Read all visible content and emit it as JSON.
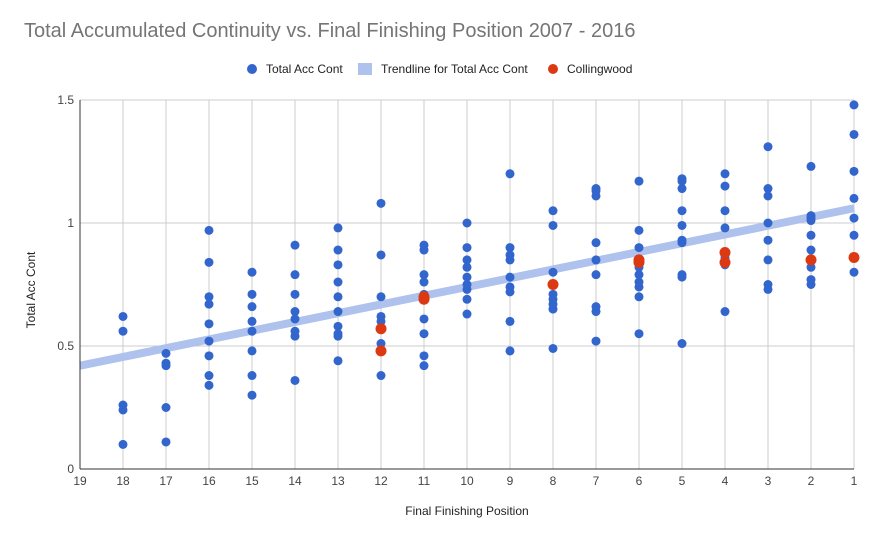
{
  "chart_data": {
    "type": "scatter",
    "title": "Total Accumulated Continuity vs. Final Finishing Position 2007 - 2016",
    "xlabel": "Final Finishing Position",
    "ylabel": "Total Acc Cont",
    "xlim": [
      19,
      1
    ],
    "x_reversed": true,
    "ylim": [
      0,
      1.5
    ],
    "x_ticks": [
      "19",
      "18",
      "17",
      "16",
      "15",
      "14",
      "13",
      "12",
      "11",
      "10",
      "9",
      "8",
      "7",
      "6",
      "5",
      "4",
      "3",
      "2",
      "1"
    ],
    "y_ticks": [
      "0",
      "0.5",
      "1",
      "1.5"
    ],
    "grid": true,
    "legend_position": "top-center",
    "colors": {
      "series": "#3366cc",
      "trendline": "#aec2ed",
      "collingwood": "#dc3912",
      "grid": "#cccccc",
      "axis": "#333333"
    },
    "series": [
      {
        "name": "Total Acc Cont",
        "points": [
          [
            18,
            0.1
          ],
          [
            18,
            0.24
          ],
          [
            18,
            0.26
          ],
          [
            18,
            0.56
          ],
          [
            18,
            0.62
          ],
          [
            17,
            0.11
          ],
          [
            17,
            0.25
          ],
          [
            17,
            0.42
          ],
          [
            17,
            0.43
          ],
          [
            17,
            0.47
          ],
          [
            16,
            0.34
          ],
          [
            16,
            0.38
          ],
          [
            16,
            0.46
          ],
          [
            16,
            0.52
          ],
          [
            16,
            0.59
          ],
          [
            16,
            0.67
          ],
          [
            16,
            0.7
          ],
          [
            16,
            0.84
          ],
          [
            16,
            0.97
          ],
          [
            15,
            0.3
          ],
          [
            15,
            0.38
          ],
          [
            15,
            0.48
          ],
          [
            15,
            0.56
          ],
          [
            15,
            0.6
          ],
          [
            15,
            0.66
          ],
          [
            15,
            0.71
          ],
          [
            15,
            0.8
          ],
          [
            14,
            0.36
          ],
          [
            14,
            0.54
          ],
          [
            14,
            0.56
          ],
          [
            14,
            0.61
          ],
          [
            14,
            0.64
          ],
          [
            14,
            0.71
          ],
          [
            14,
            0.79
          ],
          [
            14,
            0.91
          ],
          [
            13,
            0.44
          ],
          [
            13,
            0.54
          ],
          [
            13,
            0.55
          ],
          [
            13,
            0.58
          ],
          [
            13,
            0.64
          ],
          [
            13,
            0.7
          ],
          [
            13,
            0.76
          ],
          [
            13,
            0.83
          ],
          [
            13,
            0.89
          ],
          [
            13,
            0.98
          ],
          [
            12,
            0.38
          ],
          [
            12,
            0.51
          ],
          [
            12,
            0.6
          ],
          [
            12,
            0.62
          ],
          [
            12,
            0.7
          ],
          [
            12,
            0.87
          ],
          [
            12,
            1.08
          ],
          [
            11,
            0.42
          ],
          [
            11,
            0.46
          ],
          [
            11,
            0.55
          ],
          [
            11,
            0.61
          ],
          [
            11,
            0.71
          ],
          [
            11,
            0.76
          ],
          [
            11,
            0.79
          ],
          [
            11,
            0.89
          ],
          [
            11,
            0.91
          ],
          [
            10,
            0.63
          ],
          [
            10,
            0.69
          ],
          [
            10,
            0.73
          ],
          [
            10,
            0.75
          ],
          [
            10,
            0.78
          ],
          [
            10,
            0.82
          ],
          [
            10,
            0.85
          ],
          [
            10,
            0.9
          ],
          [
            10,
            1.0
          ],
          [
            9,
            0.48
          ],
          [
            9,
            0.6
          ],
          [
            9,
            0.72
          ],
          [
            9,
            0.74
          ],
          [
            9,
            0.78
          ],
          [
            9,
            0.85
          ],
          [
            9,
            0.87
          ],
          [
            9,
            0.9
          ],
          [
            9,
            1.2
          ],
          [
            8,
            0.49
          ],
          [
            8,
            0.65
          ],
          [
            8,
            0.67
          ],
          [
            8,
            0.69
          ],
          [
            8,
            0.71
          ],
          [
            8,
            0.8
          ],
          [
            8,
            0.99
          ],
          [
            8,
            1.05
          ],
          [
            7,
            0.52
          ],
          [
            7,
            0.64
          ],
          [
            7,
            0.66
          ],
          [
            7,
            0.79
          ],
          [
            7,
            0.85
          ],
          [
            7,
            0.92
          ],
          [
            7,
            1.11
          ],
          [
            7,
            1.13
          ],
          [
            7,
            1.14
          ],
          [
            6,
            0.55
          ],
          [
            6,
            0.7
          ],
          [
            6,
            0.74
          ],
          [
            6,
            0.76
          ],
          [
            6,
            0.79
          ],
          [
            6,
            0.82
          ],
          [
            6,
            0.9
          ],
          [
            6,
            0.97
          ],
          [
            6,
            1.17
          ],
          [
            5,
            0.51
          ],
          [
            5,
            0.78
          ],
          [
            5,
            0.79
          ],
          [
            5,
            0.92
          ],
          [
            5,
            0.93
          ],
          [
            5,
            0.99
          ],
          [
            5,
            1.05
          ],
          [
            5,
            1.14
          ],
          [
            5,
            1.17
          ],
          [
            5,
            1.18
          ],
          [
            4,
            0.64
          ],
          [
            4,
            0.83
          ],
          [
            4,
            0.86
          ],
          [
            4,
            0.88
          ],
          [
            4,
            0.98
          ],
          [
            4,
            1.05
          ],
          [
            4,
            1.15
          ],
          [
            4,
            1.2
          ],
          [
            3,
            0.73
          ],
          [
            3,
            0.75
          ],
          [
            3,
            0.85
          ],
          [
            3,
            0.93
          ],
          [
            3,
            1.0
          ],
          [
            3,
            1.11
          ],
          [
            3,
            1.14
          ],
          [
            3,
            1.31
          ],
          [
            2,
            0.75
          ],
          [
            2,
            0.77
          ],
          [
            2,
            0.82
          ],
          [
            2,
            0.85
          ],
          [
            2,
            0.89
          ],
          [
            2,
            0.95
          ],
          [
            2,
            1.01
          ],
          [
            2,
            1.02
          ],
          [
            2,
            1.03
          ],
          [
            2,
            1.23
          ],
          [
            1,
            0.8
          ],
          [
            1,
            0.86
          ],
          [
            1,
            0.95
          ],
          [
            1,
            1.02
          ],
          [
            1,
            1.1
          ],
          [
            1,
            1.21
          ],
          [
            1,
            1.36
          ],
          [
            1,
            1.48
          ]
        ]
      },
      {
        "name": "Trendline for Total Acc Cont",
        "type": "line",
        "points": [
          [
            19,
            0.42
          ],
          [
            1,
            1.06
          ]
        ]
      },
      {
        "name": "Collingwood",
        "points": [
          [
            12,
            0.48
          ],
          [
            12,
            0.57
          ],
          [
            11,
            0.69
          ],
          [
            11,
            0.7
          ],
          [
            8,
            0.75
          ],
          [
            6,
            0.84
          ],
          [
            6,
            0.85
          ],
          [
            4,
            0.84
          ],
          [
            4,
            0.88
          ],
          [
            2,
            0.85
          ],
          [
            1,
            0.86
          ]
        ]
      }
    ]
  }
}
